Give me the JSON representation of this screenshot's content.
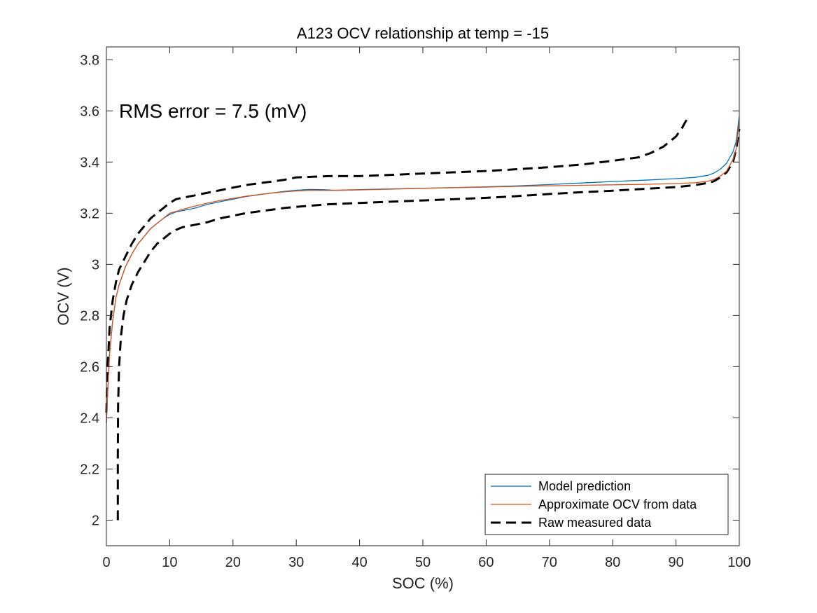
{
  "chart_data": {
    "type": "line",
    "title": "A123 OCV relationship at temp = -15",
    "xlabel": "SOC (%)",
    "ylabel": "OCV (V)",
    "xlim": [
      0,
      100
    ],
    "ylim": [
      1.9,
      3.85
    ],
    "xticks": [
      0,
      10,
      20,
      30,
      40,
      50,
      60,
      70,
      80,
      90,
      100
    ],
    "yticks": [
      2,
      2.2,
      2.4,
      2.6,
      2.8,
      3,
      3.2,
      3.4,
      3.6,
      3.8
    ],
    "ytick_labels": [
      "2",
      "2.2",
      "2.4",
      "2.6",
      "2.8",
      "3",
      "3.2",
      "3.4",
      "3.6",
      "3.8"
    ],
    "annotation": "RMS error =  7.5 (mV)",
    "legend_position": "bottom-right",
    "grid": false,
    "series": [
      {
        "name": "Model prediction",
        "color": "#0072BD",
        "style": "solid",
        "x": [
          0,
          0.2,
          0.5,
          1,
          1.5,
          2,
          3,
          4,
          5,
          6,
          7,
          8,
          9,
          10,
          11,
          12,
          14,
          16,
          18,
          20,
          22,
          25,
          28,
          30,
          32,
          34,
          36,
          40,
          45,
          50,
          55,
          60,
          65,
          70,
          75,
          80,
          85,
          90,
          93,
          95,
          96,
          97,
          98,
          99,
          99.5,
          100
        ],
        "y": [
          2.38,
          2.5,
          2.65,
          2.78,
          2.87,
          2.92,
          2.99,
          3.04,
          3.08,
          3.11,
          3.14,
          3.16,
          3.18,
          3.195,
          3.205,
          3.21,
          3.22,
          3.235,
          3.245,
          3.255,
          3.265,
          3.275,
          3.285,
          3.29,
          3.293,
          3.292,
          3.29,
          3.292,
          3.295,
          3.298,
          3.3,
          3.303,
          3.307,
          3.312,
          3.318,
          3.324,
          3.329,
          3.335,
          3.34,
          3.348,
          3.357,
          3.372,
          3.395,
          3.44,
          3.48,
          3.58
        ]
      },
      {
        "name": "Approximate OCV from data",
        "color": "#D95319",
        "style": "solid",
        "x": [
          0,
          0.2,
          0.5,
          1,
          1.5,
          2,
          3,
          4,
          5,
          6,
          7,
          8,
          9,
          10,
          11,
          12,
          14,
          16,
          18,
          20,
          22,
          25,
          28,
          30,
          32,
          34,
          36,
          40,
          45,
          50,
          55,
          60,
          65,
          70,
          75,
          80,
          85,
          90,
          93,
          95,
          96,
          97,
          98,
          99,
          99.5,
          100
        ],
        "y": [
          2.38,
          2.5,
          2.65,
          2.78,
          2.87,
          2.92,
          2.99,
          3.04,
          3.08,
          3.11,
          3.14,
          3.16,
          3.18,
          3.2,
          3.207,
          3.215,
          3.228,
          3.24,
          3.25,
          3.258,
          3.266,
          3.276,
          3.283,
          3.287,
          3.289,
          3.289,
          3.289,
          3.291,
          3.294,
          3.297,
          3.3,
          3.302,
          3.305,
          3.307,
          3.309,
          3.311,
          3.313,
          3.316,
          3.319,
          3.325,
          3.332,
          3.345,
          3.365,
          3.41,
          3.45,
          3.56
        ]
      },
      {
        "name": "Raw measured data",
        "color": "#000000",
        "style": "dashed",
        "x": [
          0,
          0.2,
          0.5,
          1,
          1.5,
          2,
          3,
          4,
          5,
          6,
          7,
          8,
          9,
          10,
          11,
          12,
          14,
          16,
          18,
          20,
          22,
          25,
          28,
          30,
          35,
          40,
          45,
          50,
          55,
          60,
          65,
          70,
          75,
          80,
          84,
          86,
          88,
          90,
          91,
          92
        ],
        "y": [
          2.42,
          2.6,
          2.75,
          2.86,
          2.93,
          2.98,
          3.03,
          3.08,
          3.12,
          3.15,
          3.18,
          3.2,
          3.22,
          3.24,
          3.255,
          3.26,
          3.27,
          3.28,
          3.29,
          3.3,
          3.31,
          3.32,
          3.33,
          3.34,
          3.345,
          3.345,
          3.35,
          3.355,
          3.36,
          3.365,
          3.372,
          3.38,
          3.39,
          3.405,
          3.418,
          3.435,
          3.46,
          3.5,
          3.535,
          3.58
        ]
      },
      {
        "name": "Raw measured data",
        "color": "#000000",
        "style": "dashed",
        "x": [
          1.8,
          1.8,
          1.85,
          2,
          2.3,
          2.7,
          3.2,
          4,
          5,
          6,
          7,
          8,
          9,
          10,
          11,
          12,
          14,
          16,
          18,
          20,
          22,
          25,
          28,
          30,
          35,
          40,
          45,
          50,
          55,
          60,
          65,
          70,
          75,
          80,
          85,
          90,
          93,
          95,
          96,
          97,
          98,
          99,
          99.5,
          100
        ],
        "y": [
          2.0,
          2.25,
          2.45,
          2.6,
          2.72,
          2.8,
          2.86,
          2.92,
          2.97,
          3.01,
          3.05,
          3.08,
          3.1,
          3.12,
          3.135,
          3.145,
          3.155,
          3.165,
          3.18,
          3.19,
          3.2,
          3.21,
          3.22,
          3.225,
          3.235,
          3.24,
          3.245,
          3.25,
          3.255,
          3.26,
          3.267,
          3.275,
          3.282,
          3.288,
          3.295,
          3.302,
          3.31,
          3.318,
          3.325,
          3.34,
          3.36,
          3.4,
          3.45,
          3.53
        ]
      }
    ]
  }
}
